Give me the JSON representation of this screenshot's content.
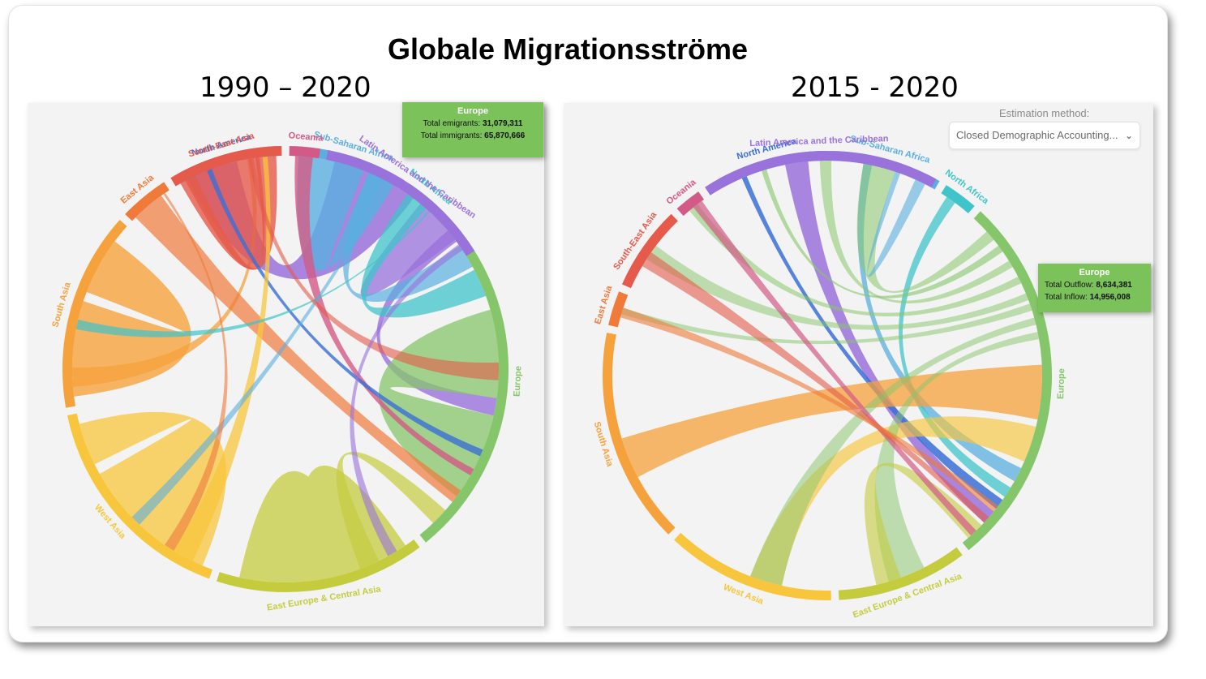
{
  "title": "Globale Migrationsströme",
  "colors": {
    "north_america": "#3a6fd6",
    "sub_saharan_africa": "#5aafe0",
    "north_africa": "#3fc4c9",
    "europe": "#86c66a",
    "east_europe_central_asia": "#c4cc3e",
    "west_asia": "#f8c63c",
    "south_asia": "#f6a23c",
    "east_asia": "#ef7a3a",
    "south_east_asia": "#e55a4a",
    "oceania": "#d35a86",
    "latin_america": "#9a72dc"
  },
  "chart_data": [
    {
      "type": "chord",
      "subtitle": "1990 – 2020",
      "regions": [
        {
          "name": "North America",
          "key": "north_america"
        },
        {
          "name": "Sub-Saharan Africa",
          "key": "sub_saharan_africa"
        },
        {
          "name": "North Africa",
          "key": "north_africa"
        },
        {
          "name": "Europe",
          "key": "europe"
        },
        {
          "name": "East Europe & Central Asia",
          "key": "east_europe_central_asia"
        },
        {
          "name": "West Asia",
          "key": "west_asia"
        },
        {
          "name": "South Asia",
          "key": "south_asia"
        },
        {
          "name": "East Asia",
          "key": "east_asia"
        },
        {
          "name": "South-East Asia",
          "key": "south_east_asia"
        },
        {
          "name": "Oceania",
          "key": "oceania"
        },
        {
          "name": "Latin America and the Caribbean",
          "key": "latin_america"
        }
      ],
      "tooltip": {
        "region": "Europe",
        "line1_label": "Total emigrants:",
        "line1_value": "31,079,311",
        "line2_label": "Total immigrants:",
        "line2_value": "65,870,666"
      }
    },
    {
      "type": "chord",
      "subtitle": "2015 - 2020",
      "regions": [
        {
          "name": "North America",
          "key": "north_america"
        },
        {
          "name": "Sub-Saharan Africa",
          "key": "sub_saharan_africa"
        },
        {
          "name": "North Africa",
          "key": "north_africa"
        },
        {
          "name": "Europe",
          "key": "europe"
        },
        {
          "name": "East Europe & Central Asia",
          "key": "east_europe_central_asia"
        },
        {
          "name": "West Asia",
          "key": "west_asia"
        },
        {
          "name": "South Asia",
          "key": "south_asia"
        },
        {
          "name": "East Asia",
          "key": "east_asia"
        },
        {
          "name": "South-East Asia",
          "key": "south_east_asia"
        },
        {
          "name": "Oceania",
          "key": "oceania"
        },
        {
          "name": "Latin America and the Caribbean",
          "key": "latin_america"
        }
      ],
      "tooltip": {
        "region": "Europe",
        "line1_label": "Total Outflow:",
        "line1_value": "8,634,381",
        "line2_label": "Total Inflow:",
        "line2_value": "14,956,008"
      },
      "estimation": {
        "label": "Estimation method:",
        "selected": "Closed Demographic Accounting..."
      }
    }
  ]
}
